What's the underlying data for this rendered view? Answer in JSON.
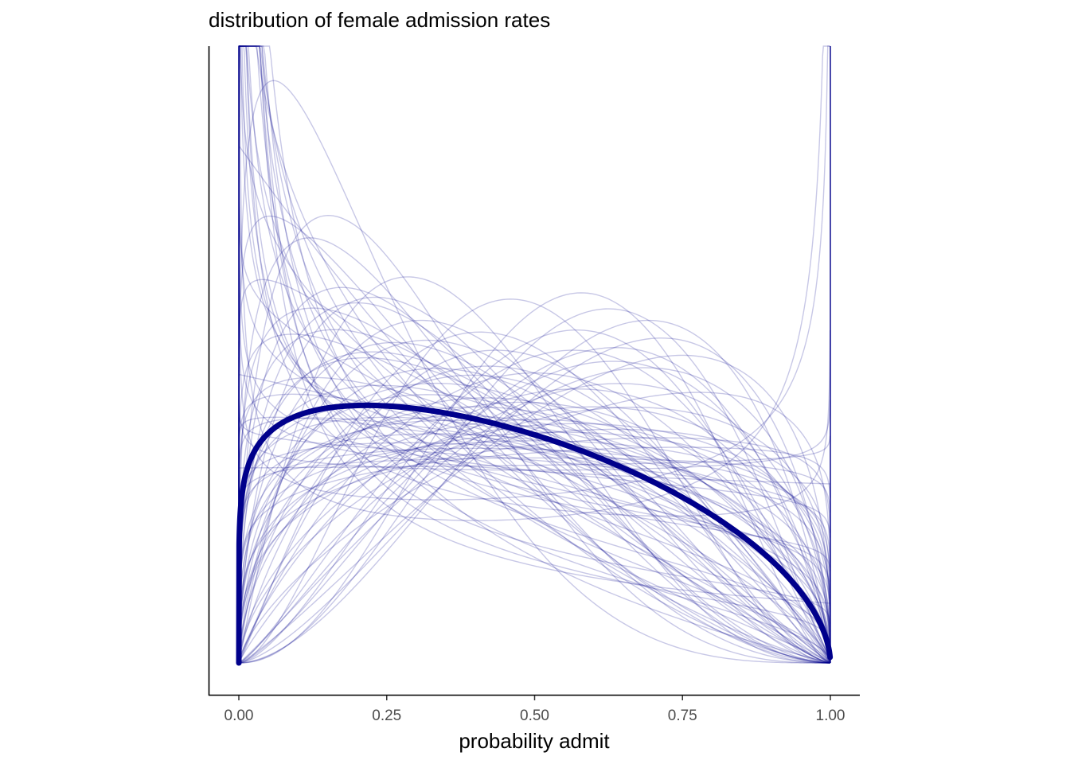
{
  "chart_data": {
    "type": "line",
    "title": "distribution of female admission rates",
    "xlabel": "probability admit",
    "ylabel": "",
    "xlim": [
      0,
      1
    ],
    "x_ticks": [
      "0.00",
      "0.25",
      "0.50",
      "0.75",
      "1.00"
    ],
    "x_tick_values": [
      0,
      0.25,
      0.5,
      0.75,
      1.0
    ],
    "y_axis_labels_shown": false,
    "grid": false,
    "series_color": "#00008B",
    "thin_series_opacity": 0.22,
    "highlight_series": {
      "shape": "beta",
      "a": 1.15,
      "b": 1.55
    },
    "sample_series_beta_params": [
      [
        0.55,
        1.3
      ],
      [
        0.6,
        1.6
      ],
      [
        0.65,
        1.9
      ],
      [
        0.7,
        1.4
      ],
      [
        0.75,
        2.2
      ],
      [
        0.8,
        1.8
      ],
      [
        0.85,
        2.5
      ],
      [
        0.9,
        2.0
      ],
      [
        0.7,
        1.1
      ],
      [
        0.95,
        1.7
      ],
      [
        1.0,
        2.6
      ],
      [
        1.05,
        1.5
      ],
      [
        1.1,
        2.0
      ],
      [
        1.15,
        1.3
      ],
      [
        1.2,
        2.4
      ],
      [
        1.25,
        1.8
      ],
      [
        1.3,
        1.5
      ],
      [
        1.35,
        2.2
      ],
      [
        1.4,
        1.6
      ],
      [
        1.45,
        2.8
      ],
      [
        1.5,
        1.7
      ],
      [
        1.55,
        2.1
      ],
      [
        1.6,
        1.4
      ],
      [
        1.7,
        2.5
      ],
      [
        1.8,
        1.6
      ],
      [
        1.9,
        1.9
      ],
      [
        2.0,
        2.3
      ],
      [
        2.1,
        1.5
      ],
      [
        2.2,
        1.7
      ],
      [
        2.3,
        2.0
      ],
      [
        2.5,
        1.6
      ],
      [
        2.8,
        1.8
      ],
      [
        1.3,
        3.2
      ],
      [
        1.5,
        3.8
      ],
      [
        1.2,
        4.2
      ],
      [
        1.8,
        2.8
      ],
      [
        1.6,
        3.0
      ],
      [
        2.0,
        3.5
      ],
      [
        1.4,
        2.9
      ],
      [
        1.1,
        2.8
      ],
      [
        1.05,
        1.05
      ],
      [
        1.1,
        1.15
      ],
      [
        1.2,
        1.2
      ],
      [
        1.02,
        1.3
      ],
      [
        1.3,
        1.25
      ],
      [
        1.15,
        1.05
      ],
      [
        1.25,
        1.1
      ],
      [
        1.08,
        1.2
      ],
      [
        1.25,
        1.45
      ],
      [
        1.4,
        1.4
      ],
      [
        1.35,
        1.2
      ],
      [
        1.6,
        1.3
      ],
      [
        1.9,
        1.5
      ],
      [
        2.2,
        1.4
      ],
      [
        1.7,
        1.2
      ],
      [
        2.4,
        1.8
      ],
      [
        0.95,
        0.95
      ],
      [
        0.9,
        1.0
      ],
      [
        1.0,
        0.98
      ],
      [
        0.88,
        1.05
      ],
      [
        0.98,
        1.1
      ],
      [
        0.35,
        1.2
      ],
      [
        0.45,
        1.5
      ],
      [
        0.5,
        2.0
      ],
      [
        0.4,
        1.1
      ],
      [
        0.3,
        1.0
      ],
      [
        0.7,
        0.55
      ],
      [
        0.85,
        0.7
      ],
      [
        0.6,
        0.85
      ],
      [
        1.05,
        2.2
      ],
      [
        1.3,
        2.1
      ],
      [
        0.9,
        1.35
      ],
      [
        1.1,
        1.7
      ],
      [
        1.45,
        1.9
      ],
      [
        1.2,
        1.6
      ],
      [
        0.8,
        1.25
      ],
      [
        1.0,
        1.45
      ],
      [
        1.35,
        1.75
      ],
      [
        1.5,
        2.4
      ],
      [
        1.25,
        2.3
      ],
      [
        1.65,
        2.0
      ],
      [
        2.6,
        2.2
      ],
      [
        3.0,
        2.2
      ],
      [
        3.2,
        2.6
      ],
      [
        2.7,
        3.0
      ],
      [
        1.8,
        2.1
      ],
      [
        2.1,
        2.6
      ],
      [
        1.05,
        1.35
      ],
      [
        1.15,
        1.45
      ],
      [
        0.75,
        1.15
      ],
      [
        0.65,
        1.05
      ],
      [
        1.4,
        1.3
      ],
      [
        1.55,
        1.6
      ]
    ]
  }
}
